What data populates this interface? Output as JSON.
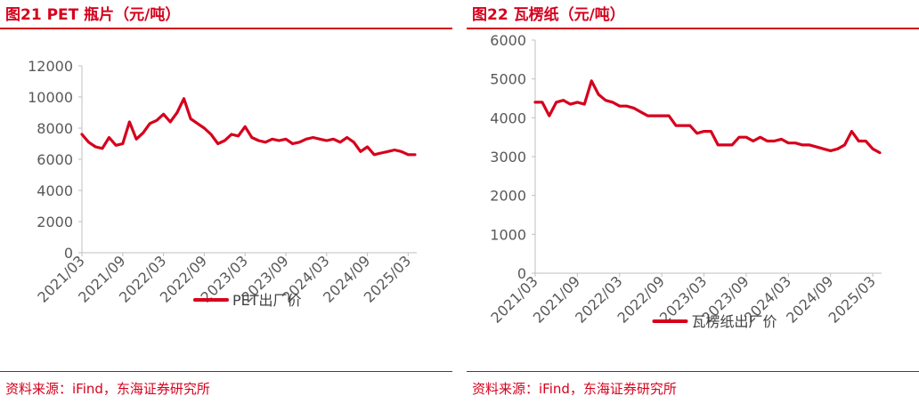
{
  "figures": [
    {
      "title": "图21  PET 瓶片（元/吨）",
      "source": "资料来源：iFind，东海证券研究所",
      "legend": "PET出厂价",
      "color": "#d6001c"
    },
    {
      "title": "图22  瓦楞纸（元/吨）",
      "source": "资料来源：iFind，东海证券研究所",
      "legend": "瓦楞纸出厂价",
      "color": "#d6001c"
    }
  ],
  "chart_data": [
    {
      "type": "line",
      "title": "",
      "xlabel": "",
      "ylabel": "",
      "ylim": [
        0,
        12000
      ],
      "yticks": [
        0,
        2000,
        4000,
        6000,
        8000,
        10000,
        12000
      ],
      "xticks": [
        "2021/03",
        "2021/09",
        "2022/03",
        "2022/09",
        "2023/03",
        "2023/09",
        "2024/03",
        "2024/09",
        "2025/03"
      ],
      "grid": false,
      "legend_position": "bottom",
      "series": [
        {
          "name": "PET出厂价",
          "x": [
            "2021/03",
            "2021/04",
            "2021/05",
            "2021/06",
            "2021/07",
            "2021/08",
            "2021/09",
            "2021/10",
            "2021/11",
            "2021/12",
            "2022/01",
            "2022/02",
            "2022/03",
            "2022/04",
            "2022/05",
            "2022/06",
            "2022/07",
            "2022/08",
            "2022/09",
            "2022/10",
            "2022/11",
            "2022/12",
            "2023/01",
            "2023/02",
            "2023/03",
            "2023/04",
            "2023/05",
            "2023/06",
            "2023/07",
            "2023/08",
            "2023/09",
            "2023/10",
            "2023/11",
            "2023/12",
            "2024/01",
            "2024/02",
            "2024/03",
            "2024/04",
            "2024/05",
            "2024/06",
            "2024/07",
            "2024/08",
            "2024/09",
            "2024/10",
            "2024/11",
            "2024/12",
            "2025/01",
            "2025/02",
            "2025/03",
            "2025/04"
          ],
          "values": [
            7600,
            7100,
            6800,
            6700,
            7400,
            6900,
            7000,
            8400,
            7300,
            7700,
            8300,
            8500,
            8900,
            8400,
            9000,
            9900,
            8600,
            8300,
            8000,
            7600,
            7000,
            7200,
            7600,
            7500,
            8100,
            7400,
            7200,
            7100,
            7300,
            7200,
            7300,
            7000,
            7100,
            7300,
            7400,
            7300,
            7200,
            7300,
            7100,
            7400,
            7100,
            6500,
            6800,
            6300,
            6400,
            6500,
            6600,
            6500,
            6300,
            6300
          ]
        }
      ]
    },
    {
      "type": "line",
      "title": "",
      "xlabel": "",
      "ylabel": "",
      "ylim": [
        0,
        6000
      ],
      "yticks": [
        0,
        1000,
        2000,
        3000,
        4000,
        5000,
        6000
      ],
      "xticks": [
        "2021/03",
        "2021/09",
        "2022/03",
        "2022/09",
        "2023/03",
        "2023/09",
        "2024/03",
        "2024/09",
        "2025/03"
      ],
      "grid": false,
      "legend_position": "bottom",
      "series": [
        {
          "name": "瓦楞纸出厂价",
          "x": [
            "2021/03",
            "2021/04",
            "2021/05",
            "2021/06",
            "2021/07",
            "2021/08",
            "2021/09",
            "2021/10",
            "2021/11",
            "2021/12",
            "2022/01",
            "2022/02",
            "2022/03",
            "2022/04",
            "2022/05",
            "2022/06",
            "2022/07",
            "2022/08",
            "2022/09",
            "2022/10",
            "2022/11",
            "2022/12",
            "2023/01",
            "2023/02",
            "2023/03",
            "2023/04",
            "2023/05",
            "2023/06",
            "2023/07",
            "2023/08",
            "2023/09",
            "2023/10",
            "2023/11",
            "2023/12",
            "2024/01",
            "2024/02",
            "2024/03",
            "2024/04",
            "2024/05",
            "2024/06",
            "2024/07",
            "2024/08",
            "2024/09",
            "2024/10",
            "2024/11",
            "2024/12",
            "2025/01",
            "2025/02",
            "2025/03",
            "2025/04"
          ],
          "values": [
            4400,
            4400,
            4050,
            4400,
            4450,
            4350,
            4400,
            4350,
            4950,
            4600,
            4450,
            4400,
            4300,
            4300,
            4250,
            4150,
            4050,
            4050,
            4050,
            4050,
            3800,
            3800,
            3800,
            3600,
            3650,
            3650,
            3300,
            3300,
            3300,
            3500,
            3500,
            3400,
            3500,
            3400,
            3400,
            3450,
            3350,
            3350,
            3300,
            3300,
            3250,
            3200,
            3150,
            3200,
            3300,
            3650,
            3400,
            3400,
            3200,
            3100
          ]
        }
      ]
    }
  ]
}
